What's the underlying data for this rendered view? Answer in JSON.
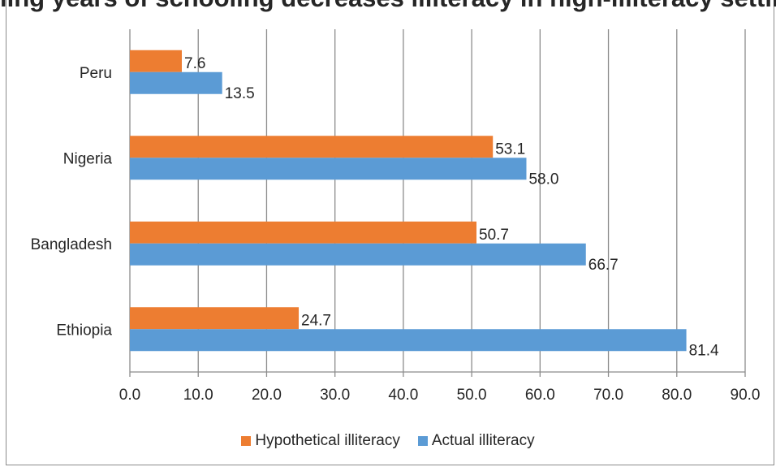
{
  "chart_data": {
    "type": "bar",
    "orientation": "horizontal",
    "title": "ling years of schooling decreases illiteracy in high-illiteracy settings",
    "categories": [
      "Peru",
      "Nigeria",
      "Bangladesh",
      "Ethiopia"
    ],
    "series": [
      {
        "name": "Hypothetical illiteracy",
        "color": "#ed7d31",
        "values": [
          7.6,
          53.1,
          50.7,
          24.7
        ],
        "labels": [
          "7.6",
          "53.1",
          "50.7",
          "24.7"
        ]
      },
      {
        "name": "Actual illiteracy",
        "color": "#5b9bd5",
        "values": [
          13.5,
          58.0,
          66.7,
          81.4
        ],
        "labels": [
          "13.5",
          "58.0",
          "66.7",
          "81.4"
        ]
      }
    ],
    "xlim": [
      0,
      90
    ],
    "xticks": [
      0,
      10,
      20,
      30,
      40,
      50,
      60,
      70,
      80,
      90
    ],
    "xtick_labels": [
      "0.0",
      "10.0",
      "20.0",
      "30.0",
      "40.0",
      "50.0",
      "60.0",
      "70.0",
      "80.0",
      "90.0"
    ],
    "grid": "vertical",
    "legend_position": "bottom"
  }
}
